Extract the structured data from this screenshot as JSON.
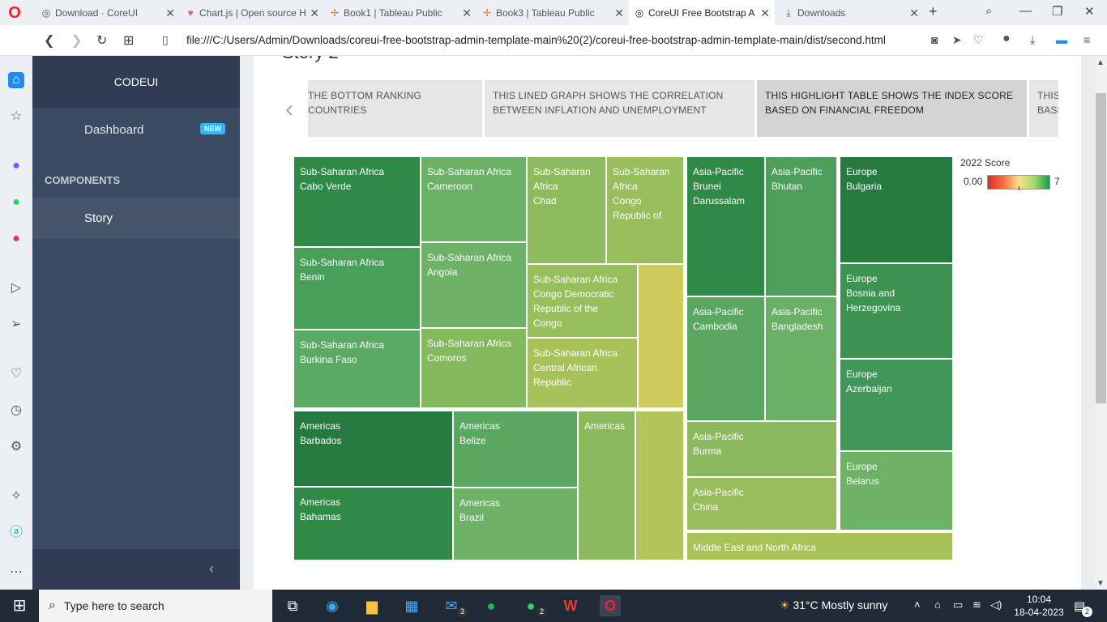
{
  "browser": {
    "tabs": [
      {
        "label": "Download · CoreUI",
        "icon": "coreui-icon"
      },
      {
        "label": "Chart.js | Open source H",
        "icon": "chartjs-icon"
      },
      {
        "label": "Book1 | Tableau Public",
        "icon": "tableau-icon"
      },
      {
        "label": "Book3 | Tableau Public",
        "icon": "tableau-icon"
      },
      {
        "label": "CoreUI Free Bootstrap A",
        "icon": "coreui-icon"
      },
      {
        "label": "Downloads",
        "icon": "download-icon"
      }
    ],
    "active_tab": 4,
    "url": "file:///C:/Users/Admin/Downloads/coreui-free-bootstrap-admin-template-main%20(2)/coreui-free-bootstrap-admin-template-main/dist/second.html"
  },
  "app": {
    "brand": "CODEUI",
    "nav": {
      "dashboard": "Dashboard",
      "badge": "NEW",
      "section_title": "COMPONENTS",
      "story": "Story"
    },
    "collapse_icon": "chevron-left-icon"
  },
  "story": {
    "heading": "Story 2",
    "points": [
      "THE BOTTOM RANKING COUNTRIES",
      "THIS LINED GRAPH SHOWS THE CORRELATION BETWEEN INFLATION AND UNEMPLOYMENT",
      "THIS HIGHLIGHT TABLE SHOWS THE INDEX SCORE BASED ON FINANCIAL FREEDOM",
      "THIS BASE"
    ],
    "active_point": 2
  },
  "treemap": {
    "legend": {
      "title": "2022 Score",
      "min": "0.00",
      "max": "7"
    },
    "cells": [
      {
        "id": "cabo-verde",
        "lines": [
          "Sub-Saharan Africa",
          "Cabo Verde"
        ],
        "color": "#2f8a48"
      },
      {
        "id": "benin",
        "lines": [
          "Sub-Saharan Africa",
          "Benin"
        ],
        "color": "#479f5a"
      },
      {
        "id": "burkina-faso",
        "lines": [
          "Sub-Saharan Africa",
          "Burkina Faso"
        ],
        "color": "#5aaa63"
      },
      {
        "id": "cameroon",
        "lines": [
          "Sub-Saharan Africa",
          "Cameroon"
        ],
        "color": "#6bb266"
      },
      {
        "id": "angola",
        "lines": [
          "Sub-Saharan Africa",
          "Angola"
        ],
        "color": "#6db266"
      },
      {
        "id": "comoros",
        "lines": [
          "Sub-Saharan Africa",
          "Comoros"
        ],
        "color": "#84b95e"
      },
      {
        "id": "chad",
        "lines": [
          "Sub-Saharan Africa",
          "Chad"
        ],
        "color": "#8dbb5e"
      },
      {
        "id": "congo-rep",
        "lines": [
          "Sub-Saharan Africa",
          "Congo",
          "Republic of"
        ],
        "color": "#98bf5c"
      },
      {
        "id": "congo-dem",
        "lines": [
          "Sub-Saharan Africa",
          "Congo Democratic",
          "Republic of the",
          "Congo"
        ],
        "color": "#97c05d"
      },
      {
        "id": "central-african",
        "lines": [
          "Sub-Saharan Africa",
          "Central African",
          "Republic"
        ],
        "color": "#a8c25a"
      },
      {
        "id": "ssa-yellow",
        "lines": [],
        "color": "#cfca5c"
      },
      {
        "id": "barbados",
        "lines": [
          "Americas",
          "Barbados"
        ],
        "color": "#267a40"
      },
      {
        "id": "bahamas",
        "lines": [
          "Americas",
          "Bahamas"
        ],
        "color": "#2f8a48"
      },
      {
        "id": "belize",
        "lines": [
          "Americas",
          "Belize"
        ],
        "color": "#5aa860"
      },
      {
        "id": "brazil",
        "lines": [
          "Americas",
          "Brazil"
        ],
        "color": "#6db266"
      },
      {
        "id": "americas-3",
        "lines": [
          "Americas"
        ],
        "color": "#8ab95e"
      },
      {
        "id": "americas-4",
        "lines": [],
        "color": "#b4c45a"
      },
      {
        "id": "brunei",
        "lines": [
          "Asia-Pacific",
          "Brunei",
          "Darussalam"
        ],
        "color": "#2f8a48"
      },
      {
        "id": "bhutan",
        "lines": [
          "Asia-Pacific",
          "Bhutan"
        ],
        "color": "#4f9f5c"
      },
      {
        "id": "cambodia",
        "lines": [
          "Asia-Pacific",
          "Cambodia"
        ],
        "color": "#5aa860"
      },
      {
        "id": "bangladesh",
        "lines": [
          "Asia-Pacific",
          "Bangladesh"
        ],
        "color": "#6ab066"
      },
      {
        "id": "burma",
        "lines": [
          "Asia-Pacific",
          "Burma"
        ],
        "color": "#8bba5e"
      },
      {
        "id": "china",
        "lines": [
          "Asia-Pacific",
          "China"
        ],
        "color": "#98bd5c"
      },
      {
        "id": "bulgaria",
        "lines": [
          "Europe",
          "Bulgaria"
        ],
        "color": "#267a40"
      },
      {
        "id": "bosnia",
        "lines": [
          "Europe",
          "Bosnia and",
          "Herzegovina"
        ],
        "color": "#3c9352"
      },
      {
        "id": "azerbaijan",
        "lines": [
          "Europe",
          "Azerbaijan"
        ],
        "color": "#42965a"
      },
      {
        "id": "belarus",
        "lines": [
          "Europe",
          "Belarus"
        ],
        "color": "#6db266"
      },
      {
        "id": "mena",
        "lines": [
          "Middle East and North Africa"
        ],
        "color": "#a8c25a"
      }
    ]
  },
  "taskbar": {
    "search_placeholder": "Type here to search",
    "weather": "31°C  Mostly sunny",
    "time": "10:04",
    "date": "18-04-2023",
    "mail_count": "3",
    "whatsapp_count": "2",
    "notif_count": "2"
  }
}
